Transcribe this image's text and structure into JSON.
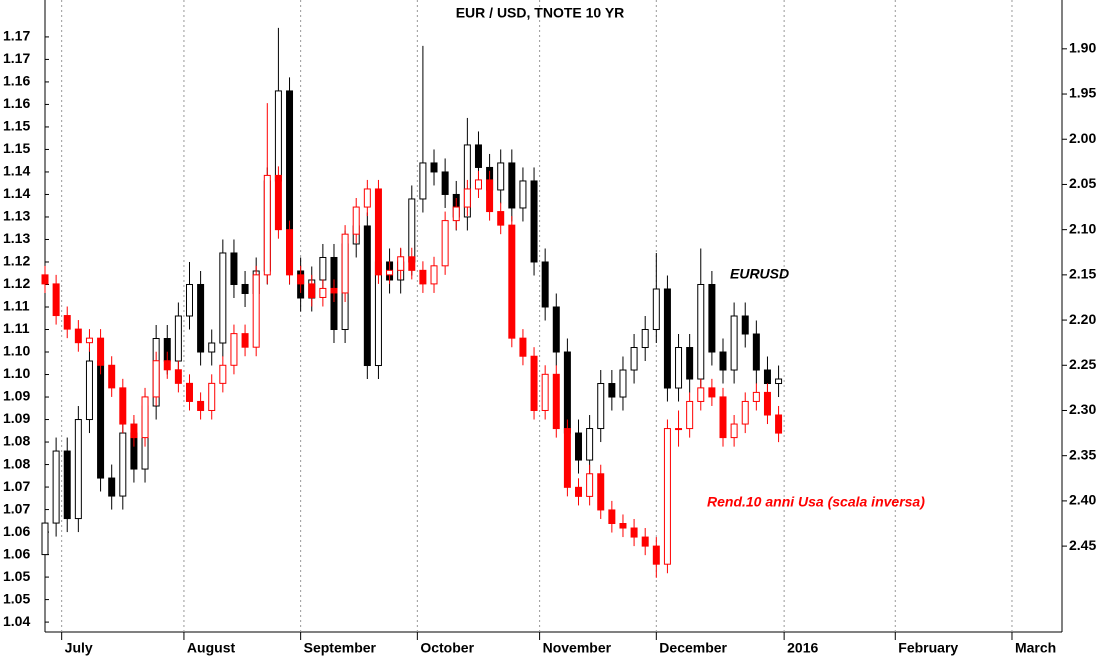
{
  "chart_data": {
    "type": "candlestick",
    "title": "EUR / USD, TNOTE 10 YR",
    "grid": true,
    "x": [
      0,
      2,
      4,
      6,
      8,
      10,
      12,
      14,
      16,
      18,
      20,
      22,
      24,
      26,
      28,
      30,
      32,
      34,
      36,
      38,
      40,
      42,
      44,
      46,
      48,
      50,
      52,
      54,
      56,
      58,
      60,
      62,
      64,
      66,
      68,
      70,
      72,
      74,
      76,
      78,
      80,
      82,
      84,
      86,
      88,
      90,
      92,
      94,
      96,
      98,
      100,
      102,
      104,
      106,
      108,
      110,
      112,
      114,
      116,
      118,
      120,
      122,
      124,
      126,
      128,
      130,
      132
    ],
    "xlim": [
      0,
      183
    ],
    "xticks": [
      {
        "value": 3,
        "label": "July"
      },
      {
        "value": 25,
        "label": "August"
      },
      {
        "value": 46,
        "label": "September"
      },
      {
        "value": 67,
        "label": "October"
      },
      {
        "value": 89,
        "label": "November"
      },
      {
        "value": 110,
        "label": "December"
      },
      {
        "value": 133,
        "label": "2016"
      },
      {
        "value": 153,
        "label": "February"
      },
      {
        "value": 174,
        "label": "March"
      }
    ],
    "ylim": [
      1.0378,
      1.1782
    ],
    "yticks": [
      1.17,
      {
        "value": 1.165,
        "label": "1.17"
      },
      1.16,
      {
        "value": 1.155,
        "label": "1.16"
      },
      1.15,
      {
        "value": 1.145,
        "label": "1.15"
      },
      1.14,
      {
        "value": 1.135,
        "label": "1.14"
      },
      1.13,
      {
        "value": 1.125,
        "label": "1.13"
      },
      1.12,
      {
        "value": 1.115,
        "label": "1.12"
      },
      1.11,
      {
        "value": 1.105,
        "label": "1.11"
      },
      {
        "value": 1.1,
        "label": "1.10"
      },
      {
        "value": 1.095,
        "label": "1.10"
      },
      1.09,
      {
        "value": 1.085,
        "label": "1.09"
      },
      1.08,
      {
        "value": 1.075,
        "label": "1.08"
      },
      1.07,
      {
        "value": 1.065,
        "label": "1.07"
      },
      1.06,
      {
        "value": 1.055,
        "label": "1.06"
      },
      1.05,
      {
        "value": 1.045,
        "label": "1.05"
      },
      1.04
    ],
    "y2lim": [
      2.545,
      1.846
    ],
    "y2ticks": [
      {
        "value": 1.9,
        "label": "1.90"
      },
      1.95,
      {
        "value": 2.0,
        "label": "2.00"
      },
      2.05,
      {
        "value": 2.1,
        "label": "2.10"
      },
      2.15,
      {
        "value": 2.2,
        "label": "2.20"
      },
      2.25,
      {
        "value": 2.3,
        "label": "2.30"
      },
      2.35,
      {
        "value": 2.4,
        "label": "2.40"
      },
      2.45
    ],
    "series": [
      {
        "name": "EURUSD",
        "color": "#000000",
        "values": [
          [
            1.055,
            1.065,
            1.05,
            1.062
          ],
          [
            1.062,
            1.081,
            1.059,
            1.078
          ],
          [
            1.078,
            1.081,
            1.06,
            1.063
          ],
          [
            1.063,
            1.088,
            1.06,
            1.085
          ],
          [
            1.085,
            1.101,
            1.082,
            1.098
          ],
          [
            1.098,
            1.101,
            1.069,
            1.072
          ],
          [
            1.072,
            1.075,
            1.065,
            1.068
          ],
          [
            1.068,
            1.085,
            1.065,
            1.082
          ],
          [
            1.082,
            1.085,
            1.071,
            1.074
          ],
          [
            1.074,
            1.091,
            1.071,
            1.088
          ],
          [
            1.088,
            1.106,
            1.085,
            1.103
          ],
          [
            1.103,
            1.106,
            1.095,
            1.098
          ],
          [
            1.098,
            1.111,
            1.095,
            1.108
          ],
          [
            1.108,
            1.12,
            1.105,
            1.115
          ],
          [
            1.115,
            1.118,
            1.097,
            1.1
          ],
          [
            1.1,
            1.105,
            1.097,
            1.102
          ],
          [
            1.102,
            1.125,
            1.099,
            1.122
          ],
          [
            1.122,
            1.125,
            1.112,
            1.115
          ],
          [
            1.115,
            1.118,
            1.11,
            1.113
          ],
          [
            1.113,
            1.121,
            1.11,
            1.118
          ],
          [
            1.118,
            1.141,
            1.115,
            1.138
          ],
          [
            1.138,
            1.172,
            1.135,
            1.158
          ],
          [
            1.158,
            1.161,
            1.115,
            1.118
          ],
          [
            1.118,
            1.121,
            1.109,
            1.112
          ],
          [
            1.112,
            1.119,
            1.109,
            1.116
          ],
          [
            1.116,
            1.124,
            1.113,
            1.121
          ],
          [
            1.121,
            1.124,
            1.102,
            1.105
          ],
          [
            1.105,
            1.127,
            1.102,
            1.124
          ],
          [
            1.124,
            1.131,
            1.121,
            1.128
          ],
          [
            1.128,
            1.131,
            1.094,
            1.097
          ],
          [
            1.097,
            1.123,
            1.094,
            1.12
          ],
          [
            1.12,
            1.123,
            1.113,
            1.116
          ],
          [
            1.116,
            1.123,
            1.113,
            1.12
          ],
          [
            1.12,
            1.137,
            1.117,
            1.134
          ],
          [
            1.134,
            1.168,
            1.131,
            1.142
          ],
          [
            1.142,
            1.145,
            1.137,
            1.14
          ],
          [
            1.14,
            1.143,
            1.132,
            1.135
          ],
          [
            1.135,
            1.138,
            1.127,
            1.13
          ],
          [
            1.13,
            1.152,
            1.127,
            1.146
          ],
          [
            1.146,
            1.149,
            1.138,
            1.141
          ],
          [
            1.141,
            1.144,
            1.133,
            1.136
          ],
          [
            1.136,
            1.145,
            1.133,
            1.142
          ],
          [
            1.142,
            1.145,
            1.129,
            1.132
          ],
          [
            1.132,
            1.141,
            1.129,
            1.138
          ],
          [
            1.138,
            1.141,
            1.117,
            1.12
          ],
          [
            1.12,
            1.123,
            1.107,
            1.11
          ],
          [
            1.11,
            1.113,
            1.097,
            1.1
          ],
          [
            1.1,
            1.103,
            1.079,
            1.082
          ],
          [
            1.082,
            1.085,
            1.073,
            1.076
          ],
          [
            1.076,
            1.086,
            1.073,
            1.083
          ],
          [
            1.083,
            1.096,
            1.08,
            1.093
          ],
          [
            1.093,
            1.096,
            1.087,
            1.09
          ],
          [
            1.09,
            1.099,
            1.087,
            1.096
          ],
          [
            1.096,
            1.104,
            1.093,
            1.101
          ],
          [
            1.101,
            1.108,
            1.098,
            1.105
          ],
          [
            1.105,
            1.122,
            1.102,
            1.114
          ],
          [
            1.114,
            1.117,
            1.089,
            1.092
          ],
          [
            1.092,
            1.104,
            1.089,
            1.101
          ],
          [
            1.101,
            1.104,
            1.091,
            1.094
          ],
          [
            1.094,
            1.123,
            1.091,
            1.115
          ],
          [
            1.115,
            1.118,
            1.097,
            1.1
          ],
          [
            1.1,
            1.103,
            1.093,
            1.096
          ],
          [
            1.096,
            1.111,
            1.093,
            1.108
          ],
          [
            1.108,
            1.111,
            1.101,
            1.104
          ],
          [
            1.104,
            1.107,
            1.093,
            1.096
          ],
          [
            1.096,
            1.099,
            1.09,
            1.093
          ],
          [
            1.093,
            1.097,
            1.09,
            1.094
          ]
        ]
      },
      {
        "name": "Rend.10 anni Usa (scala inversa)",
        "color": "#ff0000",
        "axis": "y2",
        "values": [
          [
            2.15,
            2.17,
            2.14,
            2.16
          ],
          [
            2.16,
            2.205,
            2.15,
            2.195
          ],
          [
            2.195,
            2.22,
            2.185,
            2.21
          ],
          [
            2.21,
            2.235,
            2.2,
            2.225
          ],
          [
            2.225,
            2.235,
            2.21,
            2.22
          ],
          [
            2.22,
            2.26,
            2.21,
            2.25
          ],
          [
            2.25,
            2.285,
            2.24,
            2.275
          ],
          [
            2.275,
            2.325,
            2.265,
            2.315
          ],
          [
            2.315,
            2.34,
            2.305,
            2.33
          ],
          [
            2.33,
            2.34,
            2.275,
            2.285
          ],
          [
            2.285,
            2.295,
            2.235,
            2.245
          ],
          [
            2.245,
            2.265,
            2.235,
            2.255
          ],
          [
            2.255,
            2.28,
            2.245,
            2.27
          ],
          [
            2.27,
            2.3,
            2.26,
            2.29
          ],
          [
            2.29,
            2.31,
            2.28,
            2.3
          ],
          [
            2.3,
            2.31,
            2.26,
            2.27
          ],
          [
            2.27,
            2.28,
            2.24,
            2.25
          ],
          [
            2.25,
            2.26,
            2.205,
            2.215
          ],
          [
            2.215,
            2.24,
            2.205,
            2.23
          ],
          [
            2.23,
            2.24,
            2.14,
            2.15
          ],
          [
            2.15,
            2.16,
            1.96,
            2.04
          ],
          [
            2.04,
            2.11,
            2.03,
            2.1
          ],
          [
            2.1,
            2.16,
            2.09,
            2.15
          ],
          [
            2.15,
            2.17,
            2.14,
            2.16
          ],
          [
            2.16,
            2.185,
            2.15,
            2.175
          ],
          [
            2.175,
            2.185,
            2.155,
            2.165
          ],
          [
            2.165,
            2.18,
            2.155,
            2.17
          ],
          [
            2.17,
            2.18,
            2.095,
            2.105
          ],
          [
            2.105,
            2.115,
            2.065,
            2.075
          ],
          [
            2.075,
            2.085,
            2.045,
            2.055
          ],
          [
            2.055,
            2.16,
            2.045,
            2.15
          ],
          [
            2.15,
            2.16,
            2.135,
            2.145
          ],
          [
            2.145,
            2.155,
            2.12,
            2.13
          ],
          [
            2.13,
            2.155,
            2.12,
            2.145
          ],
          [
            2.145,
            2.17,
            2.135,
            2.16
          ],
          [
            2.16,
            2.17,
            2.13,
            2.14
          ],
          [
            2.14,
            2.15,
            2.08,
            2.09
          ],
          [
            2.09,
            2.1,
            2.065,
            2.075
          ],
          [
            2.075,
            2.085,
            2.045,
            2.055
          ],
          [
            2.055,
            2.065,
            2.035,
            2.045
          ],
          [
            2.045,
            2.09,
            2.035,
            2.08
          ],
          [
            2.08,
            2.105,
            2.07,
            2.095
          ],
          [
            2.095,
            2.23,
            2.085,
            2.22
          ],
          [
            2.22,
            2.25,
            2.21,
            2.24
          ],
          [
            2.24,
            2.31,
            2.23,
            2.3
          ],
          [
            2.3,
            2.31,
            2.25,
            2.26
          ],
          [
            2.26,
            2.33,
            2.25,
            2.32
          ],
          [
            2.32,
            2.395,
            2.31,
            2.385
          ],
          [
            2.385,
            2.405,
            2.375,
            2.395
          ],
          [
            2.395,
            2.405,
            2.36,
            2.37
          ],
          [
            2.37,
            2.42,
            2.36,
            2.41
          ],
          [
            2.41,
            2.435,
            2.4,
            2.425
          ],
          [
            2.425,
            2.44,
            2.415,
            2.43
          ],
          [
            2.43,
            2.45,
            2.42,
            2.44
          ],
          [
            2.44,
            2.46,
            2.43,
            2.45
          ],
          [
            2.45,
            2.485,
            2.44,
            2.47
          ],
          [
            2.47,
            2.48,
            2.31,
            2.32
          ],
          [
            2.32,
            2.34,
            2.3,
            2.32
          ],
          [
            2.32,
            2.33,
            2.28,
            2.29
          ],
          [
            2.29,
            2.3,
            2.265,
            2.275
          ],
          [
            2.275,
            2.295,
            2.265,
            2.285
          ],
          [
            2.285,
            2.34,
            2.275,
            2.33
          ],
          [
            2.33,
            2.34,
            2.305,
            2.315
          ],
          [
            2.315,
            2.325,
            2.28,
            2.29
          ],
          [
            2.29,
            2.3,
            2.27,
            2.28
          ],
          [
            2.28,
            2.315,
            2.27,
            2.305
          ],
          [
            2.305,
            2.335,
            2.295,
            2.325
          ]
        ]
      }
    ]
  }
}
